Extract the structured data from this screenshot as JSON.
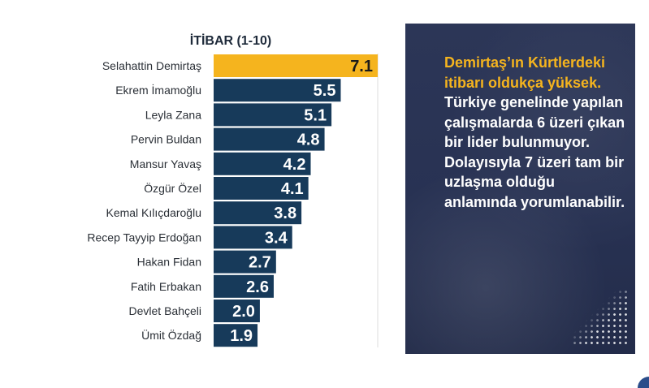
{
  "chart_data": {
    "type": "bar",
    "orientation": "horizontal",
    "title": "İTİBAR (1-10)",
    "categories": [
      "Selahattin Demirtaş",
      "Ekrem İmamoğlu",
      "Leyla Zana",
      "Pervin Buldan",
      "Mansur Yavaş",
      "Özgür Özel",
      "Kemal Kılıçdaroğlu",
      "Recep Tayyip Erdoğan",
      "Hakan Fidan",
      "Fatih Erbakan",
      "Devlet Bahçeli",
      "Ümit Özdağ"
    ],
    "values": [
      7.1,
      5.5,
      5.1,
      4.8,
      4.2,
      4.1,
      3.8,
      3.4,
      2.7,
      2.6,
      2.0,
      1.9
    ],
    "value_labels": [
      "7.1",
      "5.5",
      "5.1",
      "4.8",
      "4.2",
      "4.1",
      "3.8",
      "3.4",
      "2.7",
      "2.6",
      "2.0",
      "1.9"
    ],
    "xlim": [
      0,
      7.1
    ],
    "highlight_color": "#f5b41e",
    "bar_color": "#173a5a",
    "grid": false
  },
  "panel": {
    "highlight_text": "Demirtaş’ın Kürtlerdeki itibarı oldukça yüksek.",
    "body_text": "Türkiye genelinde yapılan çalışmalarda 6 üzeri çıkan bir lider bulunmuyor. Dolayısıyla 7 üzeri tam bir uzlaşma olduğu anlamında yorumlanabilir.",
    "background_color": "#2a3454",
    "highlight_color": "#f5b41e"
  }
}
